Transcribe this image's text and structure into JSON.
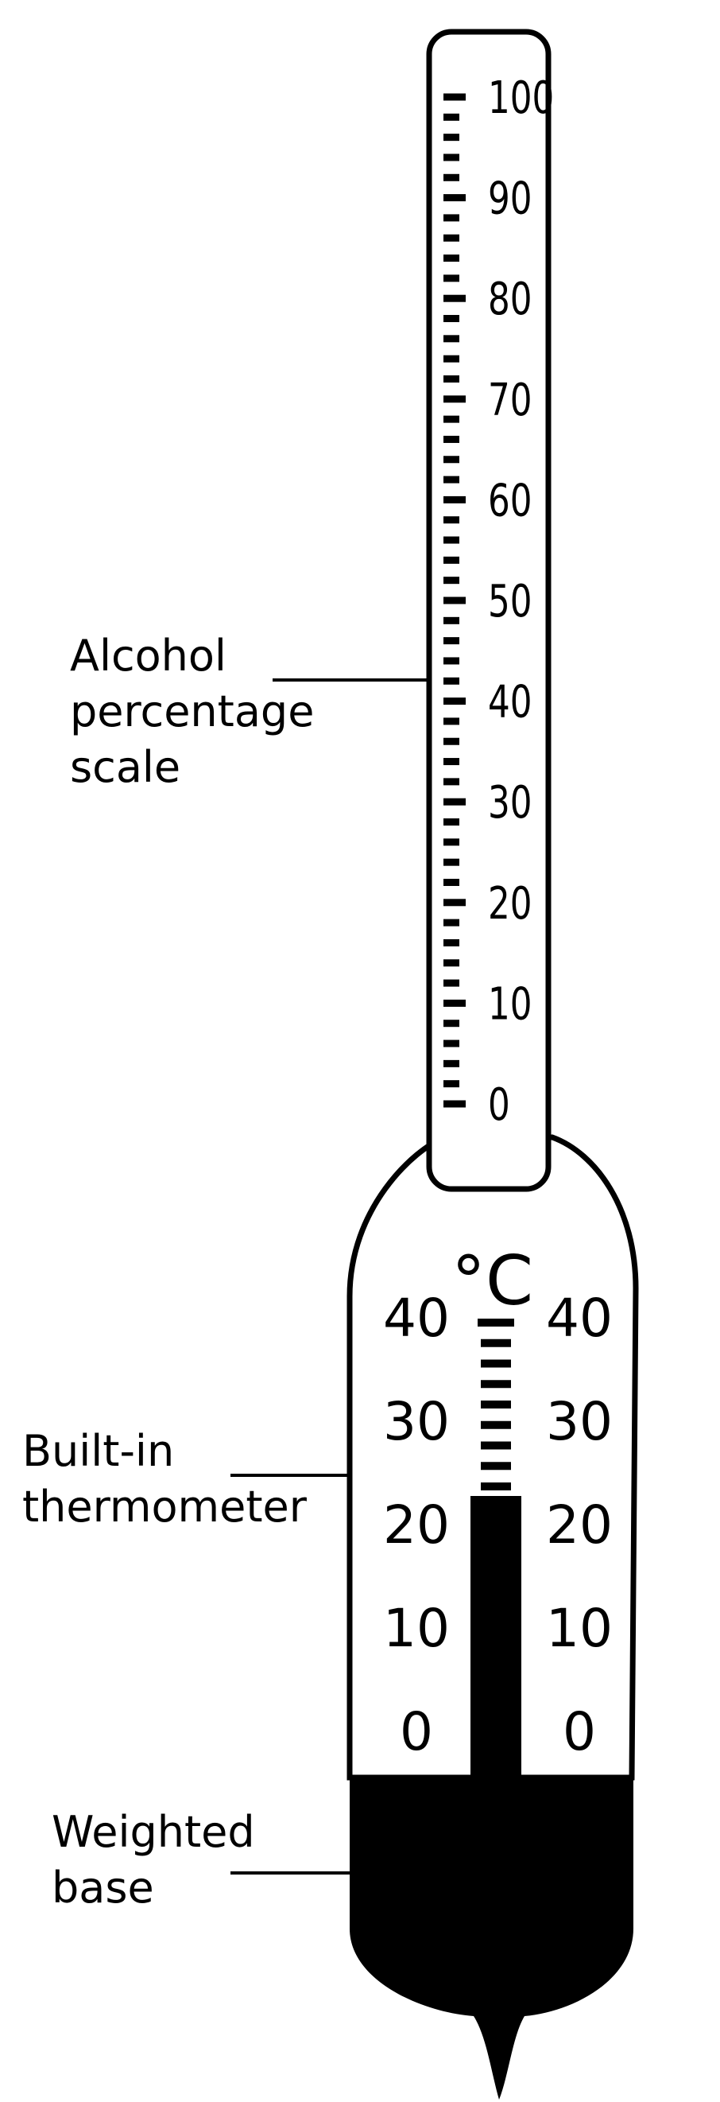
{
  "labels": {
    "scale": [
      "Alcohol",
      "percentage",
      "scale"
    ],
    "thermometer": [
      "Built-in",
      "thermometer"
    ],
    "base": [
      "Weighted",
      "base"
    ]
  },
  "alcohol_scale": {
    "ticks": [
      "100",
      "90",
      "80",
      "70",
      "60",
      "50",
      "40",
      "30",
      "20",
      "10",
      "0"
    ]
  },
  "thermometer": {
    "unit": "°C",
    "ticks": [
      "40",
      "30",
      "20",
      "10",
      "0"
    ],
    "reading": 23
  },
  "colors": {
    "ink": "#000000",
    "paper": "#ffffff"
  }
}
